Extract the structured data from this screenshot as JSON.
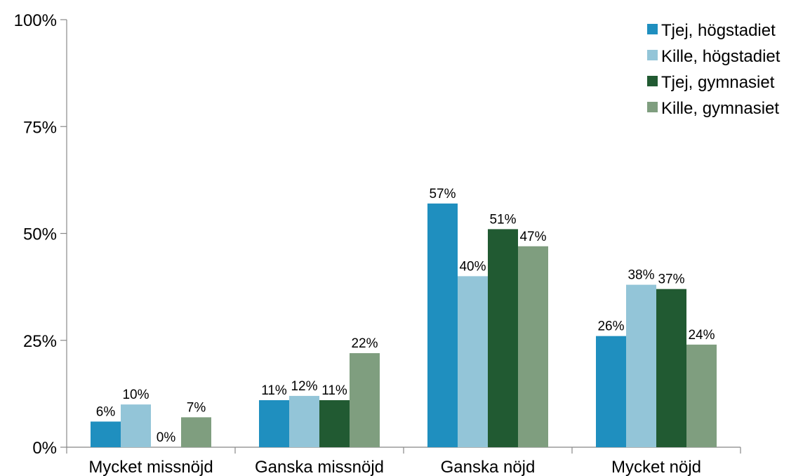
{
  "chart_data": {
    "type": "bar",
    "title": "",
    "xlabel": "",
    "ylabel": "",
    "categories": [
      "Mycket missnöjd",
      "Ganska missnöjd",
      "Ganska nöjd",
      "Mycket nöjd"
    ],
    "ylim": [
      0,
      100
    ],
    "yticks": [
      0,
      25,
      50,
      75,
      100
    ],
    "ytick_labels": [
      "0%",
      "25%",
      "50%",
      "75%",
      "100%"
    ],
    "grid": false,
    "legend_position": "top-right",
    "series": [
      {
        "name": "Tjej, högstadiet",
        "color": "#1f8fbf",
        "values": [
          6,
          11,
          57,
          26
        ],
        "labels": [
          "6%",
          "11%",
          "57%",
          "26%"
        ]
      },
      {
        "name": "Kille, högstadiet",
        "color": "#93c5d8",
        "values": [
          10,
          12,
          40,
          38
        ],
        "labels": [
          "10%",
          "12%",
          "40%",
          "38%"
        ]
      },
      {
        "name": "Tjej, gymnasiet",
        "color": "#215a32",
        "values": [
          0,
          11,
          51,
          37
        ],
        "labels": [
          "0%",
          "11%",
          "51%",
          "37%"
        ]
      },
      {
        "name": "Kille, gymnasiet",
        "color": "#7f9e7f",
        "values": [
          7,
          22,
          47,
          24
        ],
        "labels": [
          "7%",
          "22%",
          "47%",
          "24%"
        ]
      }
    ]
  }
}
